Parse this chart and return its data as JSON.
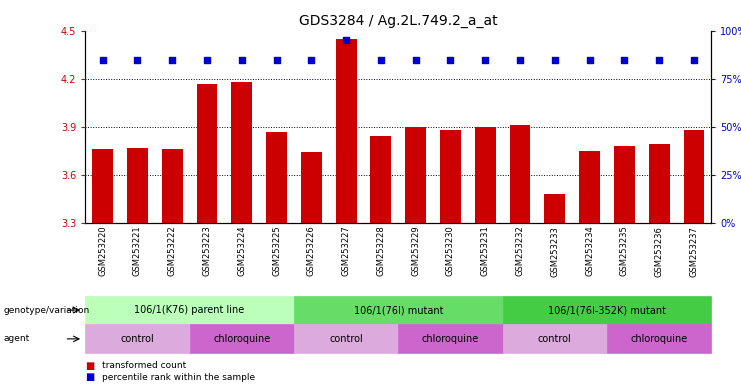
{
  "title": "GDS3284 / Ag.2L.749.2_a_at",
  "samples": [
    "GSM253220",
    "GSM253221",
    "GSM253222",
    "GSM253223",
    "GSM253224",
    "GSM253225",
    "GSM253226",
    "GSM253227",
    "GSM253228",
    "GSM253229",
    "GSM253230",
    "GSM253231",
    "GSM253232",
    "GSM253233",
    "GSM253234",
    "GSM253235",
    "GSM253236",
    "GSM253237"
  ],
  "bar_values": [
    3.76,
    3.77,
    3.76,
    4.17,
    4.18,
    3.87,
    3.74,
    4.45,
    3.84,
    3.9,
    3.88,
    3.9,
    3.91,
    3.48,
    3.75,
    3.78,
    3.79,
    3.88
  ],
  "percentile_values": [
    85,
    85,
    85,
    85,
    85,
    85,
    85,
    95,
    85,
    85,
    85,
    85,
    85,
    85,
    85,
    85,
    85,
    85
  ],
  "ylim_left": [
    3.3,
    4.5
  ],
  "ylim_right": [
    0,
    100
  ],
  "yticks_left": [
    3.3,
    3.6,
    3.9,
    4.2,
    4.5
  ],
  "yticks_right": [
    0,
    25,
    50,
    75,
    100
  ],
  "bar_color": "#cc0000",
  "dot_color": "#0000cc",
  "bar_bottom": 3.3,
  "genotype_groups": [
    {
      "label": "106/1(K76) parent line",
      "start": 0,
      "end": 6,
      "color": "#bbffbb"
    },
    {
      "label": "106/1(76I) mutant",
      "start": 6,
      "end": 12,
      "color": "#66dd66"
    },
    {
      "label": "106/1(76I-352K) mutant",
      "start": 12,
      "end": 18,
      "color": "#44cc44"
    }
  ],
  "agent_groups": [
    {
      "label": "control",
      "start": 0,
      "end": 3,
      "color": "#ddaadd"
    },
    {
      "label": "chloroquine",
      "start": 3,
      "end": 6,
      "color": "#cc66cc"
    },
    {
      "label": "control",
      "start": 6,
      "end": 9,
      "color": "#ddaadd"
    },
    {
      "label": "chloroquine",
      "start": 9,
      "end": 12,
      "color": "#cc66cc"
    },
    {
      "label": "control",
      "start": 12,
      "end": 15,
      "color": "#ddaadd"
    },
    {
      "label": "chloroquine",
      "start": 15,
      "end": 18,
      "color": "#cc66cc"
    }
  ],
  "legend_bar_color": "#cc0000",
  "legend_dot_color": "#0000cc",
  "legend_bar_label": "transformed count",
  "legend_dot_label": "percentile rank within the sample",
  "ylabel_left_color": "#cc0000",
  "ylabel_right_color": "#0000cc",
  "bg_color": "#ffffff",
  "title_fontsize": 10,
  "tick_fontsize": 7,
  "annot_fontsize": 8
}
